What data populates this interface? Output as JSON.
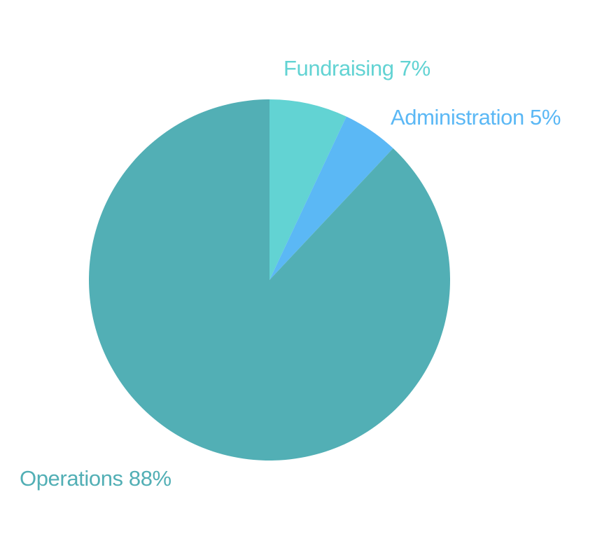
{
  "chart_data": {
    "type": "pie",
    "start_angle": "12 o'clock",
    "direction": "clockwise",
    "slices": [
      {
        "label": "Fundraising 7%",
        "name": "Fundraising",
        "value": 7,
        "color": "#62d3d3"
      },
      {
        "label": "Administration 5%",
        "name": "Administration",
        "value": 5,
        "color": "#5bb8f5"
      },
      {
        "label": "Operations 88%",
        "name": "Operations",
        "value": 88,
        "color": "#52afb5"
      }
    ]
  }
}
